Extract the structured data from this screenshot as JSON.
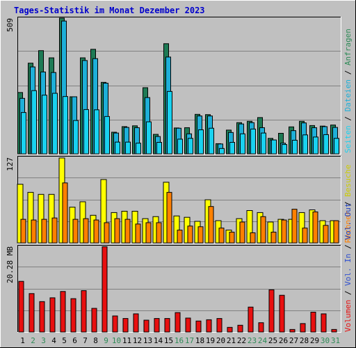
{
  "title": "Tages-Statistik im Monat Dezember 2023",
  "colors": {
    "background": "#c0c0c0",
    "plot": "#c0c0c0",
    "title": "#0000cc",
    "weekday_label": "#000000",
    "weekend_label": "#2e8b57",
    "anfragen": "#1e7a55",
    "dateien": "#1eafd8",
    "seiten": "#19d2f0",
    "besuche": "#ffff00",
    "rechner": "#ff8000",
    "vol_out": "#2040c0",
    "vol_in": "#3050d0",
    "volumen": "#e81010"
  },
  "right_labels": {
    "top": [
      "Anfragen",
      "Dateien",
      "Seiten"
    ],
    "middle": [
      "Besuche",
      "Rechner"
    ],
    "bottom": [
      "Vol. Out",
      "Vol. In",
      "Volumen"
    ]
  },
  "right_label_colors": {
    "top": [
      "#2e8b57",
      "#1eafd8",
      "#19d2f0"
    ],
    "middle": [
      "#cccc00",
      "#ff8000"
    ],
    "bottom": [
      "#2040c0",
      "#3050d0",
      "#e81010"
    ]
  },
  "chart_data": [
    {
      "type": "bar",
      "ymax_label": "509",
      "ylim": [
        0,
        509
      ],
      "grid": true,
      "categories": [
        "1",
        "2",
        "3",
        "4",
        "5",
        "6",
        "7",
        "8",
        "9",
        "10",
        "11",
        "12",
        "13",
        "14",
        "15",
        "16",
        "17",
        "18",
        "19",
        "20",
        "21",
        "22",
        "23",
        "24",
        "25",
        "26",
        "27",
        "28",
        "29",
        "30",
        "31"
      ],
      "weekend": [
        false,
        true,
        true,
        false,
        false,
        false,
        false,
        false,
        true,
        true,
        false,
        false,
        false,
        false,
        false,
        true,
        true,
        false,
        false,
        false,
        false,
        false,
        true,
        true,
        false,
        false,
        false,
        false,
        false,
        true,
        true
      ],
      "series": [
        {
          "name": "Anfragen",
          "values": [
            230,
            340,
            387,
            360,
            509,
            214,
            360,
            392,
            268,
            81,
            102,
            105,
            248,
            73,
            413,
            97,
            98,
            148,
            147,
            38,
            89,
            117,
            122,
            136,
            58,
            77,
            101,
            122,
            106,
            104,
            108
          ]
        },
        {
          "name": "Dateien",
          "values": [
            208,
            326,
            307,
            305,
            498,
            214,
            350,
            357,
            265,
            78,
            99,
            98,
            211,
            65,
            363,
            96,
            75,
            142,
            142,
            37,
            80,
            112,
            117,
            98,
            52,
            40,
            87,
            116,
            98,
            102,
            99
          ]
        },
        {
          "name": "Seiten",
          "values": [
            155,
            237,
            220,
            227,
            215,
            125,
            166,
            165,
            140,
            44,
            44,
            40,
            120,
            43,
            234,
            55,
            58,
            90,
            96,
            20,
            43,
            75,
            93,
            78,
            52,
            35,
            51,
            71,
            63,
            72,
            58
          ]
        }
      ]
    },
    {
      "type": "bar",
      "ymax_label": "127",
      "ylim": [
        0,
        127
      ],
      "grid": true,
      "categories": [
        "1",
        "2",
        "3",
        "4",
        "5",
        "6",
        "7",
        "8",
        "9",
        "10",
        "11",
        "12",
        "13",
        "14",
        "15",
        "16",
        "17",
        "18",
        "19",
        "20",
        "21",
        "22",
        "23",
        "24",
        "25",
        "26",
        "27",
        "28",
        "29",
        "30",
        "31"
      ],
      "series": [
        {
          "name": "Besuche",
          "values": [
            87,
            75,
            72,
            72,
            126,
            53,
            61,
            41,
            94,
            45,
            47,
            47,
            36,
            39,
            90,
            40,
            38,
            32,
            64,
            33,
            19,
            36,
            48,
            45,
            31,
            35,
            35,
            45,
            49,
            33,
            33
          ]
        },
        {
          "name": "Rechner",
          "values": [
            35,
            34,
            35,
            37,
            89,
            35,
            36,
            34,
            30,
            36,
            35,
            28,
            30,
            30,
            75,
            19,
            25,
            24,
            54,
            22,
            16,
            31,
            15,
            39,
            16,
            34,
            50,
            22,
            46,
            26,
            33
          ]
        }
      ]
    },
    {
      "type": "bar",
      "ymax_label": "20.28 MB",
      "ylim": [
        0,
        20.28
      ],
      "grid": true,
      "categories": [
        "1",
        "2",
        "3",
        "4",
        "5",
        "6",
        "7",
        "8",
        "9",
        "10",
        "11",
        "12",
        "13",
        "14",
        "15",
        "16",
        "17",
        "18",
        "19",
        "20",
        "21",
        "22",
        "23",
        "24",
        "25",
        "26",
        "27",
        "28",
        "29",
        "30",
        "31"
      ],
      "series": [
        {
          "name": "Volumen",
          "values": [
            12.0,
            9.1,
            7.2,
            8.1,
            9.6,
            7.9,
            9.8,
            5.6,
            20.2,
            3.8,
            3.2,
            4.3,
            2.8,
            3.2,
            3.2,
            4.6,
            3.3,
            2.6,
            2.9,
            3.2,
            1.1,
            1.6,
            5.9,
            2.2,
            10.0,
            8.7,
            0.6,
            2.0,
            4.7,
            4.3,
            0.6
          ]
        },
        {
          "name": "Vol. In",
          "values": [
            0,
            0,
            0,
            0,
            0,
            0,
            0,
            0,
            0,
            0,
            0,
            0,
            0,
            0,
            0,
            0,
            0,
            0,
            0,
            0,
            0,
            0,
            0,
            0,
            0,
            0,
            0,
            0,
            0,
            0,
            0
          ]
        },
        {
          "name": "Vol. Out",
          "values": [
            0,
            0,
            0,
            0,
            0,
            0,
            0,
            0,
            0,
            0,
            0,
            0,
            0,
            0,
            0,
            0,
            0,
            0,
            0,
            0,
            0,
            0,
            0,
            0,
            0,
            0,
            0,
            0,
            0,
            0,
            0
          ]
        }
      ]
    }
  ]
}
